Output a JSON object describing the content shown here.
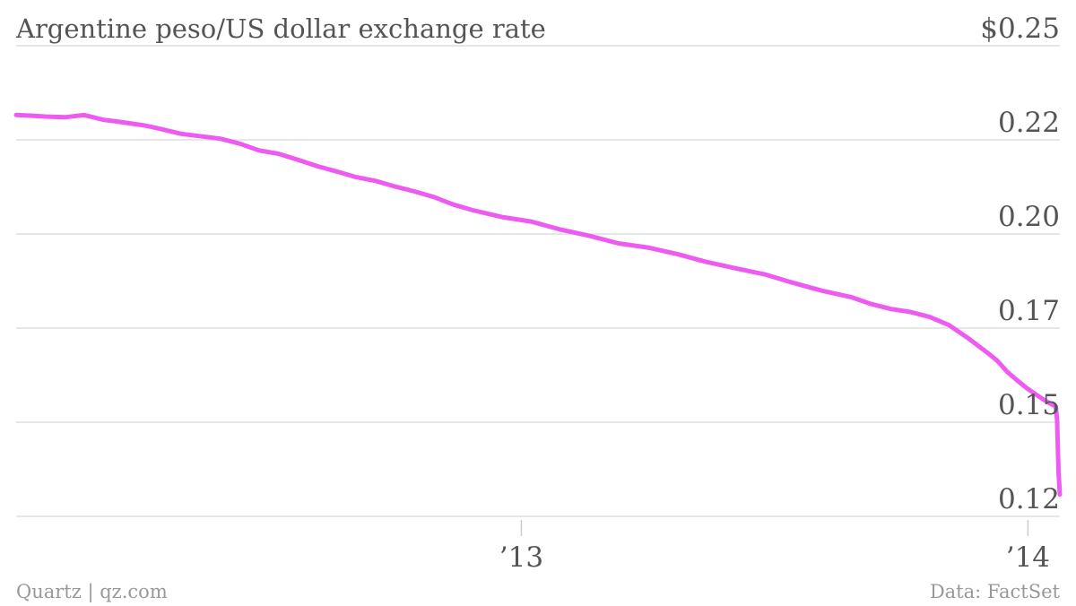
{
  "chart_data": {
    "type": "line",
    "title": "Argentine peso/US dollar exchange rate",
    "xlabel": "",
    "ylabel": "",
    "y_ticks": [
      {
        "value": 0.25,
        "label": "$0.25"
      },
      {
        "value": 0.225,
        "label": "0.22"
      },
      {
        "value": 0.2,
        "label": "0.20"
      },
      {
        "value": 0.175,
        "label": "0.17"
      },
      {
        "value": 0.15,
        "label": "0.15"
      },
      {
        "value": 0.125,
        "label": "0.12"
      }
    ],
    "x_ticks": [
      {
        "value": "2013-01-01",
        "label": "’13"
      },
      {
        "value": "2014-01-01",
        "label": "’14"
      }
    ],
    "xlim": [
      "2012-01-03",
      "2014-01-24"
    ],
    "ylim": [
      0.125,
      0.25
    ],
    "grid": true,
    "color": "#ee5bf0",
    "series": [
      {
        "x": [
          "2012-01-03",
          "2012-01-10",
          "2012-01-24",
          "2012-02-07",
          "2012-02-21",
          "2012-03-06",
          "2012-03-13",
          "2012-04-03",
          "2012-04-10",
          "2012-05-01",
          "2012-05-29",
          "2012-06-12",
          "2012-06-26",
          "2012-07-10",
          "2012-07-24",
          "2012-08-07",
          "2012-08-21",
          "2012-09-04",
          "2012-09-18",
          "2012-10-02",
          "2012-10-16",
          "2012-10-30",
          "2012-11-13",
          "2012-11-27",
          "2012-12-18",
          "2013-01-08",
          "2013-01-29",
          "2013-02-19",
          "2013-03-12",
          "2013-04-02",
          "2013-04-23",
          "2013-05-14",
          "2013-06-04",
          "2013-06-25",
          "2013-07-16",
          "2013-08-06",
          "2013-08-27",
          "2013-09-10",
          "2013-09-24",
          "2013-10-08",
          "2013-10-22",
          "2013-11-05",
          "2013-11-19",
          "2013-12-03",
          "2013-12-10",
          "2013-12-17",
          "2013-12-24",
          "2013-12-31",
          "2014-01-07",
          "2014-01-14",
          "2014-01-21",
          "2014-01-22",
          "2014-01-23",
          "2014-01-24"
        ],
        "values": [
          0.2316,
          0.2315,
          0.2312,
          0.231,
          0.2316,
          0.2303,
          0.23,
          0.2289,
          0.2284,
          0.2266,
          0.2253,
          0.224,
          0.2222,
          0.2213,
          0.2197,
          0.218,
          0.2166,
          0.2151,
          0.2141,
          0.2126,
          0.2113,
          0.2098,
          0.2078,
          0.2063,
          0.2045,
          0.2033,
          0.2012,
          0.1995,
          0.1975,
          0.1964,
          0.1947,
          0.1926,
          0.1909,
          0.1893,
          0.187,
          0.1849,
          0.1832,
          0.1814,
          0.1801,
          0.1793,
          0.178,
          0.1758,
          0.1723,
          0.1684,
          0.1663,
          0.1634,
          0.1612,
          0.1591,
          0.1573,
          0.1556,
          0.1542,
          0.1507,
          0.1369,
          0.1308
        ]
      }
    ]
  },
  "footer": {
    "source_left": "Quartz | qz.com",
    "source_right": "Data: FactSet"
  }
}
